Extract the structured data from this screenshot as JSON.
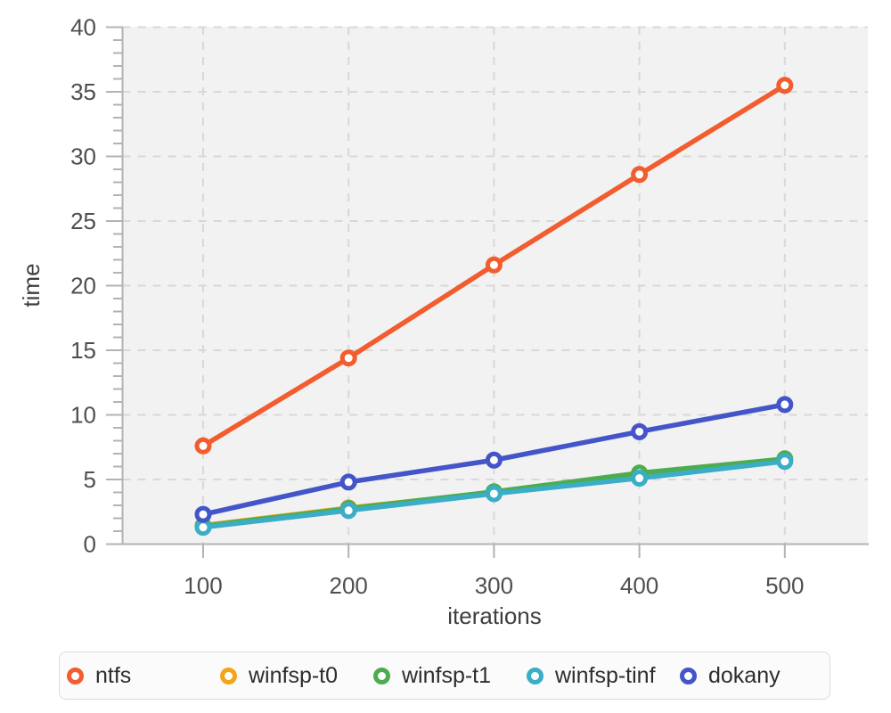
{
  "chart_data": {
    "type": "line",
    "title": "",
    "xlabel": "iterations",
    "ylabel": "time",
    "x": [
      100,
      200,
      300,
      400,
      500
    ],
    "series": [
      {
        "name": "ntfs",
        "color": "#f25c2e",
        "values": [
          7.6,
          14.4,
          21.6,
          28.6,
          35.5
        ]
      },
      {
        "name": "winfsp-t0",
        "color": "#f4a418",
        "values": [
          1.45,
          2.8,
          4.0,
          5.35,
          6.5
        ]
      },
      {
        "name": "winfsp-t1",
        "color": "#4bad50",
        "values": [
          1.4,
          2.75,
          4.05,
          5.5,
          6.6
        ]
      },
      {
        "name": "winfsp-tinf",
        "color": "#3badc7",
        "values": [
          1.3,
          2.6,
          3.9,
          5.1,
          6.4
        ]
      },
      {
        "name": "dokany",
        "color": "#4355c8",
        "values": [
          2.3,
          4.8,
          6.5,
          8.7,
          10.8
        ]
      }
    ],
    "xticks": [
      100,
      200,
      300,
      400,
      500
    ],
    "yticks": [
      0,
      5,
      10,
      15,
      20,
      25,
      30,
      35,
      40
    ],
    "y_minor_step": 1,
    "xlim": [
      44,
      557
    ],
    "ylim": [
      0,
      40
    ],
    "grid": "dashed",
    "marker": "open-circle",
    "legend_position": "bottom"
  },
  "legend": {
    "items": [
      "ntfs",
      "winfsp-t0",
      "winfsp-t1",
      "winfsp-tinf",
      "dokany"
    ]
  },
  "colors": {
    "plot_background": "#f2f2f2",
    "gridline": "#d8d8d8",
    "axis_line": "#b3b3b3",
    "tick_text": "#4f4f4f",
    "axis_title_text": "#3e3e3e",
    "legend_border": "#dcdcdc",
    "legend_background": "#fbfbfb",
    "legend_text": "#2d2d2d"
  }
}
